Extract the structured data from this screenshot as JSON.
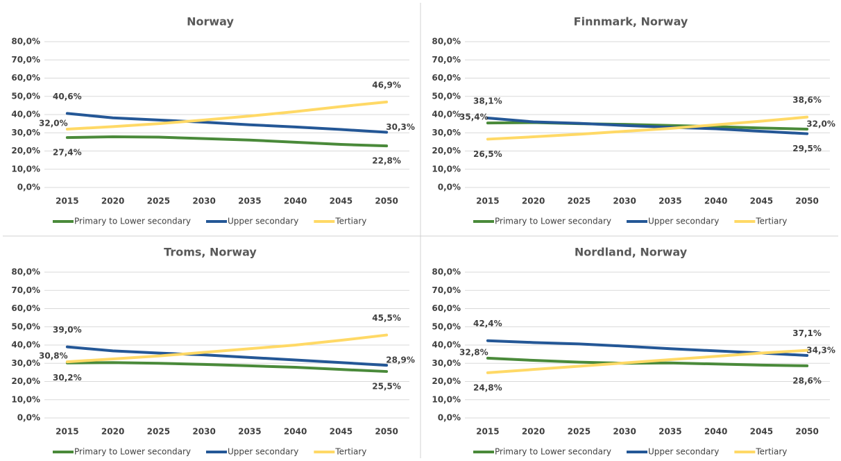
{
  "chart_data": [
    {
      "type": "line",
      "title": "Norway",
      "categories": [
        "2015",
        "2020",
        "2025",
        "2030",
        "2035",
        "2040",
        "2045",
        "2050"
      ],
      "ylim": [
        0,
        80
      ],
      "yticks": [
        {
          "value": 0,
          "label": "0,0%"
        },
        {
          "value": 10,
          "label": "10,0%"
        },
        {
          "value": 20,
          "label": "20,0%"
        },
        {
          "value": 30,
          "label": "30,0%"
        },
        {
          "value": 40,
          "label": "40,0%"
        },
        {
          "value": 50,
          "label": "50,0%"
        },
        {
          "value": 60,
          "label": "60,0%"
        },
        {
          "value": 70,
          "label": "70,0%"
        },
        {
          "value": 80,
          "label": "80,0%"
        }
      ],
      "grid": true,
      "legend": "bottom",
      "series": [
        {
          "name": "Primary to Lower secondary",
          "color": "#4a8a3a",
          "values": [
            27.4,
            27.8,
            27.6,
            26.8,
            26.0,
            24.8,
            23.6,
            22.8
          ],
          "value_labels": [
            "27,4%",
            null,
            null,
            null,
            null,
            null,
            null,
            "22,8%"
          ]
        },
        {
          "name": "Upper secondary",
          "color": "#245796",
          "values": [
            40.6,
            38.2,
            37.0,
            35.8,
            34.4,
            33.2,
            31.8,
            30.3
          ],
          "value_labels": [
            "40,6%",
            null,
            null,
            null,
            null,
            null,
            null,
            "30,3%"
          ]
        },
        {
          "name": "Tertiary",
          "color": "#ffd966",
          "values": [
            32.0,
            33.4,
            35.0,
            37.0,
            39.2,
            41.6,
            44.4,
            46.9
          ],
          "value_labels": [
            "32,0%",
            null,
            null,
            null,
            null,
            null,
            null,
            "46,9%"
          ]
        }
      ]
    },
    {
      "type": "line",
      "title": "Finnmark, Norway",
      "categories": [
        "2015",
        "2020",
        "2025",
        "2030",
        "2035",
        "2040",
        "2045",
        "2050"
      ],
      "ylim": [
        0,
        80
      ],
      "yticks": [
        {
          "value": 0,
          "label": "0,0%"
        },
        {
          "value": 10,
          "label": "10,0%"
        },
        {
          "value": 20,
          "label": "20,0%"
        },
        {
          "value": 30,
          "label": "30,0%"
        },
        {
          "value": 40,
          "label": "40,0%"
        },
        {
          "value": 50,
          "label": "50,0%"
        },
        {
          "value": 60,
          "label": "60,0%"
        },
        {
          "value": 70,
          "label": "70,0%"
        },
        {
          "value": 80,
          "label": "80,0%"
        }
      ],
      "grid": true,
      "legend": "bottom",
      "series": [
        {
          "name": "Primary to Lower secondary",
          "color": "#4a8a3a",
          "values": [
            35.4,
            35.6,
            35.0,
            34.6,
            34.0,
            33.4,
            32.6,
            32.0
          ],
          "value_labels": [
            "35,4%",
            null,
            null,
            null,
            null,
            null,
            null,
            "32,0%"
          ]
        },
        {
          "name": "Upper secondary",
          "color": "#245796",
          "values": [
            38.1,
            36.0,
            35.2,
            34.0,
            33.0,
            32.2,
            30.8,
            29.5
          ],
          "value_labels": [
            "38,1%",
            null,
            null,
            null,
            null,
            null,
            null,
            "29,5%"
          ]
        },
        {
          "name": "Tertiary",
          "color": "#ffd966",
          "values": [
            26.5,
            27.8,
            29.2,
            30.8,
            32.4,
            34.4,
            36.4,
            38.6
          ],
          "value_labels": [
            "26,5%",
            null,
            null,
            null,
            null,
            null,
            null,
            "38,6%"
          ]
        }
      ]
    },
    {
      "type": "line",
      "title": "Troms, Norway",
      "categories": [
        "2015",
        "2020",
        "2025",
        "2030",
        "2035",
        "2040",
        "2045",
        "2050"
      ],
      "ylim": [
        0,
        80
      ],
      "yticks": [
        {
          "value": 0,
          "label": "0,0%"
        },
        {
          "value": 10,
          "label": "10,0%"
        },
        {
          "value": 20,
          "label": "20,0%"
        },
        {
          "value": 30,
          "label": "30,0%"
        },
        {
          "value": 40,
          "label": "40,0%"
        },
        {
          "value": 50,
          "label": "50,0%"
        },
        {
          "value": 60,
          "label": "60,0%"
        },
        {
          "value": 70,
          "label": "70,0%"
        },
        {
          "value": 80,
          "label": "80,0%"
        }
      ],
      "grid": true,
      "legend": "bottom",
      "series": [
        {
          "name": "Primary to Lower secondary",
          "color": "#4a8a3a",
          "values": [
            30.2,
            30.4,
            30.0,
            29.4,
            28.6,
            27.8,
            26.6,
            25.5
          ],
          "value_labels": [
            "30,2%",
            null,
            null,
            null,
            null,
            null,
            null,
            "25,5%"
          ]
        },
        {
          "name": "Upper secondary",
          "color": "#245796",
          "values": [
            39.0,
            36.8,
            35.6,
            34.6,
            33.2,
            31.8,
            30.4,
            28.9
          ],
          "value_labels": [
            "39,0%",
            null,
            null,
            null,
            null,
            null,
            null,
            "28,9%"
          ]
        },
        {
          "name": "Tertiary",
          "color": "#ffd966",
          "values": [
            30.8,
            32.4,
            34.0,
            36.0,
            38.0,
            40.0,
            42.6,
            45.5
          ],
          "value_labels": [
            "30,8%",
            null,
            null,
            null,
            null,
            null,
            null,
            "45,5%"
          ]
        }
      ]
    },
    {
      "type": "line",
      "title": "Nordland, Norway",
      "categories": [
        "2015",
        "2020",
        "2025",
        "2030",
        "2035",
        "2040",
        "2045",
        "2050"
      ],
      "ylim": [
        0,
        80
      ],
      "yticks": [
        {
          "value": 0,
          "label": "0,0%"
        },
        {
          "value": 10,
          "label": "10,0%"
        },
        {
          "value": 20,
          "label": "20,0%"
        },
        {
          "value": 30,
          "label": "30,0%"
        },
        {
          "value": 40,
          "label": "40,0%"
        },
        {
          "value": 50,
          "label": "50,0%"
        },
        {
          "value": 60,
          "label": "60,0%"
        },
        {
          "value": 70,
          "label": "70,0%"
        },
        {
          "value": 80,
          "label": "80,0%"
        }
      ],
      "grid": true,
      "legend": "bottom",
      "series": [
        {
          "name": "Primary to Lower secondary",
          "color": "#4a8a3a",
          "values": [
            32.8,
            31.6,
            30.6,
            30.0,
            30.2,
            29.6,
            29.0,
            28.6
          ],
          "value_labels": [
            "32,8%",
            null,
            null,
            null,
            null,
            null,
            null,
            "28,6%"
          ]
        },
        {
          "name": "Upper secondary",
          "color": "#245796",
          "values": [
            42.4,
            41.4,
            40.6,
            39.4,
            38.0,
            36.8,
            35.6,
            34.3
          ],
          "value_labels": [
            "42,4%",
            null,
            null,
            null,
            null,
            null,
            null,
            "34,3%"
          ]
        },
        {
          "name": "Tertiary",
          "color": "#ffd966",
          "values": [
            24.8,
            26.6,
            28.4,
            30.2,
            32.0,
            33.8,
            35.6,
            37.1
          ],
          "value_labels": [
            "24,8%",
            null,
            null,
            null,
            null,
            null,
            null,
            "37,1%"
          ]
        }
      ]
    }
  ]
}
